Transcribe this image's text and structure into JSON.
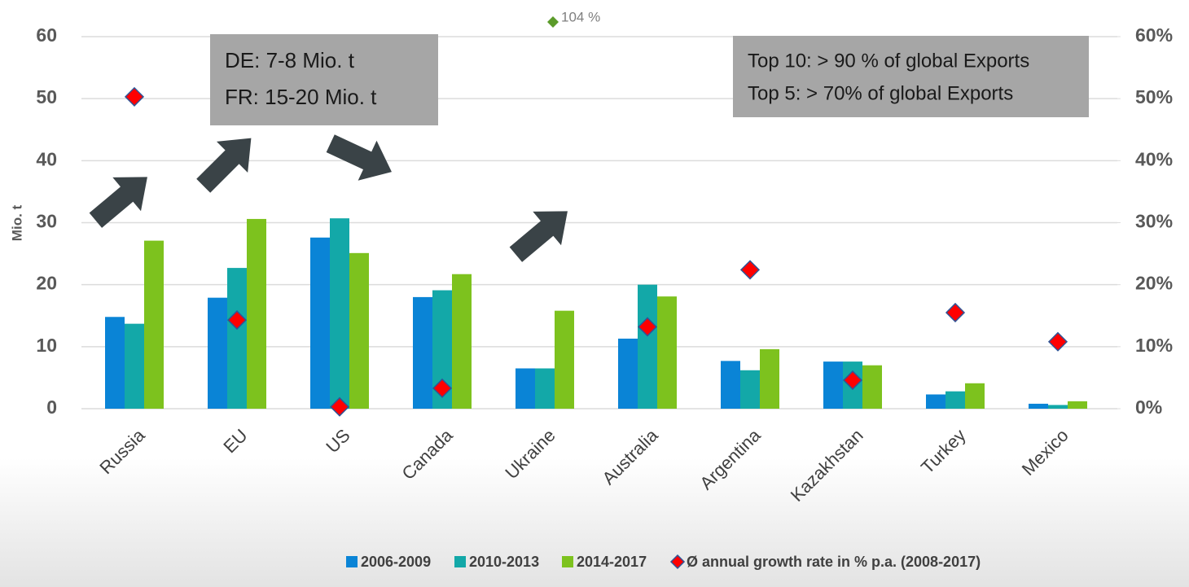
{
  "chart_data": {
    "type": "bar",
    "y_label": "Mio. t",
    "categories": [
      "Russia",
      "EU",
      "US",
      "Canada",
      "Ukraine",
      "Australia",
      "Argentina",
      "Kazakhstan",
      "Turkey",
      "Mexico"
    ],
    "series": [
      {
        "name": "2006-2009",
        "color": "#0a84d6",
        "values": [
          14.8,
          17.9,
          27.6,
          18.0,
          6.5,
          11.3,
          7.7,
          7.6,
          2.3,
          0.8
        ]
      },
      {
        "name": "2010-2013",
        "color": "#13a8a8",
        "values": [
          13.7,
          22.7,
          30.7,
          19.1,
          6.5,
          20.0,
          6.2,
          7.6,
          2.8,
          0.6
        ]
      },
      {
        "name": "2014-2017",
        "color": "#7dc21e",
        "values": [
          27.1,
          30.6,
          25.1,
          21.7,
          15.8,
          18.1,
          9.6,
          7.0,
          4.1,
          1.2
        ]
      },
      {
        "name": "Ø annual growth rate in % p.a. (2008-2017)",
        "color": "#ff0000",
        "type": "scatter",
        "axis": "y2",
        "values": [
          50.3,
          14.3,
          0.3,
          3.3,
          104,
          13.2,
          22.4,
          4.6,
          15.5,
          10.8
        ],
        "value_labels": [
          null,
          null,
          null,
          null,
          "104 %",
          null,
          null,
          null,
          null,
          null
        ],
        "overflow_color": "#5b9b2a"
      }
    ],
    "ylim": [
      0,
      60
    ],
    "yticks": [
      0,
      10,
      20,
      30,
      40,
      50,
      60
    ],
    "y2lim": [
      0,
      60
    ],
    "y2ticks": [
      {
        "value": 0,
        "label": "0%"
      },
      {
        "value": 10,
        "label": "10%"
      },
      {
        "value": 20,
        "label": "20%"
      },
      {
        "value": 30,
        "label": "30%"
      },
      {
        "value": 40,
        "label": "40%"
      },
      {
        "value": 50,
        "label": "50%"
      },
      {
        "value": 60,
        "label": "60%"
      }
    ],
    "grid": true,
    "legend": "bottom",
    "annotations": [
      {
        "lines": [
          "DE: 7-8 Mio. t",
          "FR: 15-20 Mio. t"
        ]
      },
      {
        "lines": [
          "Top 10: > 90 % of global Exports",
          "Top 5: > 70% of global Exports"
        ]
      }
    ]
  }
}
